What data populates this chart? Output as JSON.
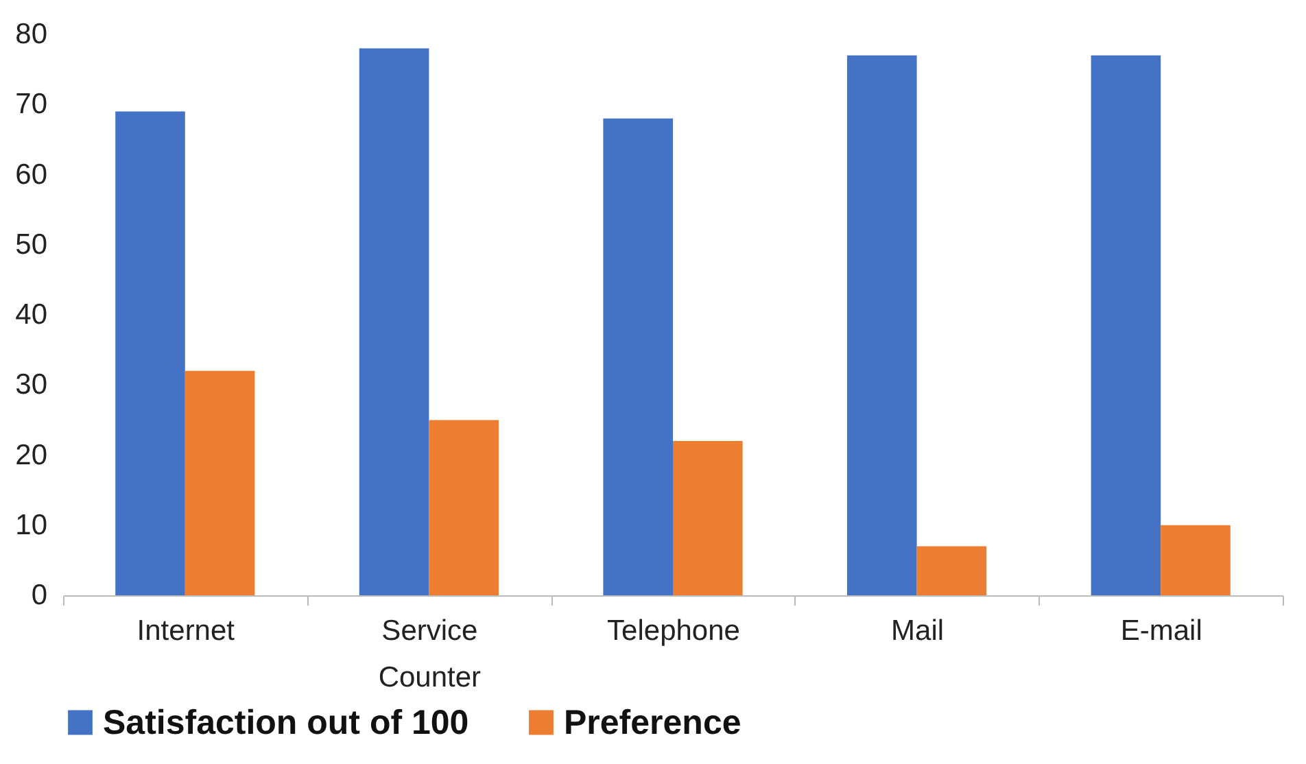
{
  "chart_data": {
    "type": "bar",
    "categories": [
      "Internet",
      "Service Counter",
      "Telephone",
      "Mail",
      "E-mail"
    ],
    "series": [
      {
        "name": "Satisfaction out of 100",
        "color": "#4472c4",
        "values": [
          69,
          78,
          68,
          77,
          77
        ]
      },
      {
        "name": "Preference",
        "color": "#ed7d31",
        "values": [
          32,
          25,
          22,
          7,
          10
        ]
      }
    ],
    "ylim": [
      0,
      80
    ],
    "yticks": [
      0,
      10,
      20,
      30,
      40,
      50,
      60,
      70,
      80
    ],
    "grid": false,
    "legend": "bottom"
  }
}
